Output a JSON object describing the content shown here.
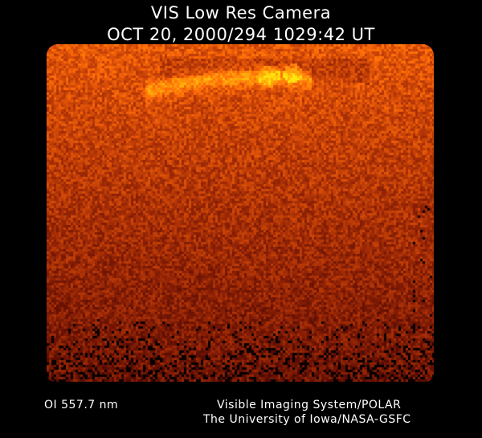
{
  "header": {
    "title": "VIS Low Res Camera",
    "timestamp": "OCT 20, 2000/294 1029:42 UT"
  },
  "image": {
    "subject": "auroral image",
    "colors": {
      "bright": "#e07a10",
      "mid": "#8a3806",
      "dark": "#401402",
      "background": "#000000"
    }
  },
  "footer": {
    "filter": "OI  557.7 nm",
    "instrument": "Visible Imaging System/POLAR",
    "credit": "The University of Iowa/NASA-GSFC"
  }
}
